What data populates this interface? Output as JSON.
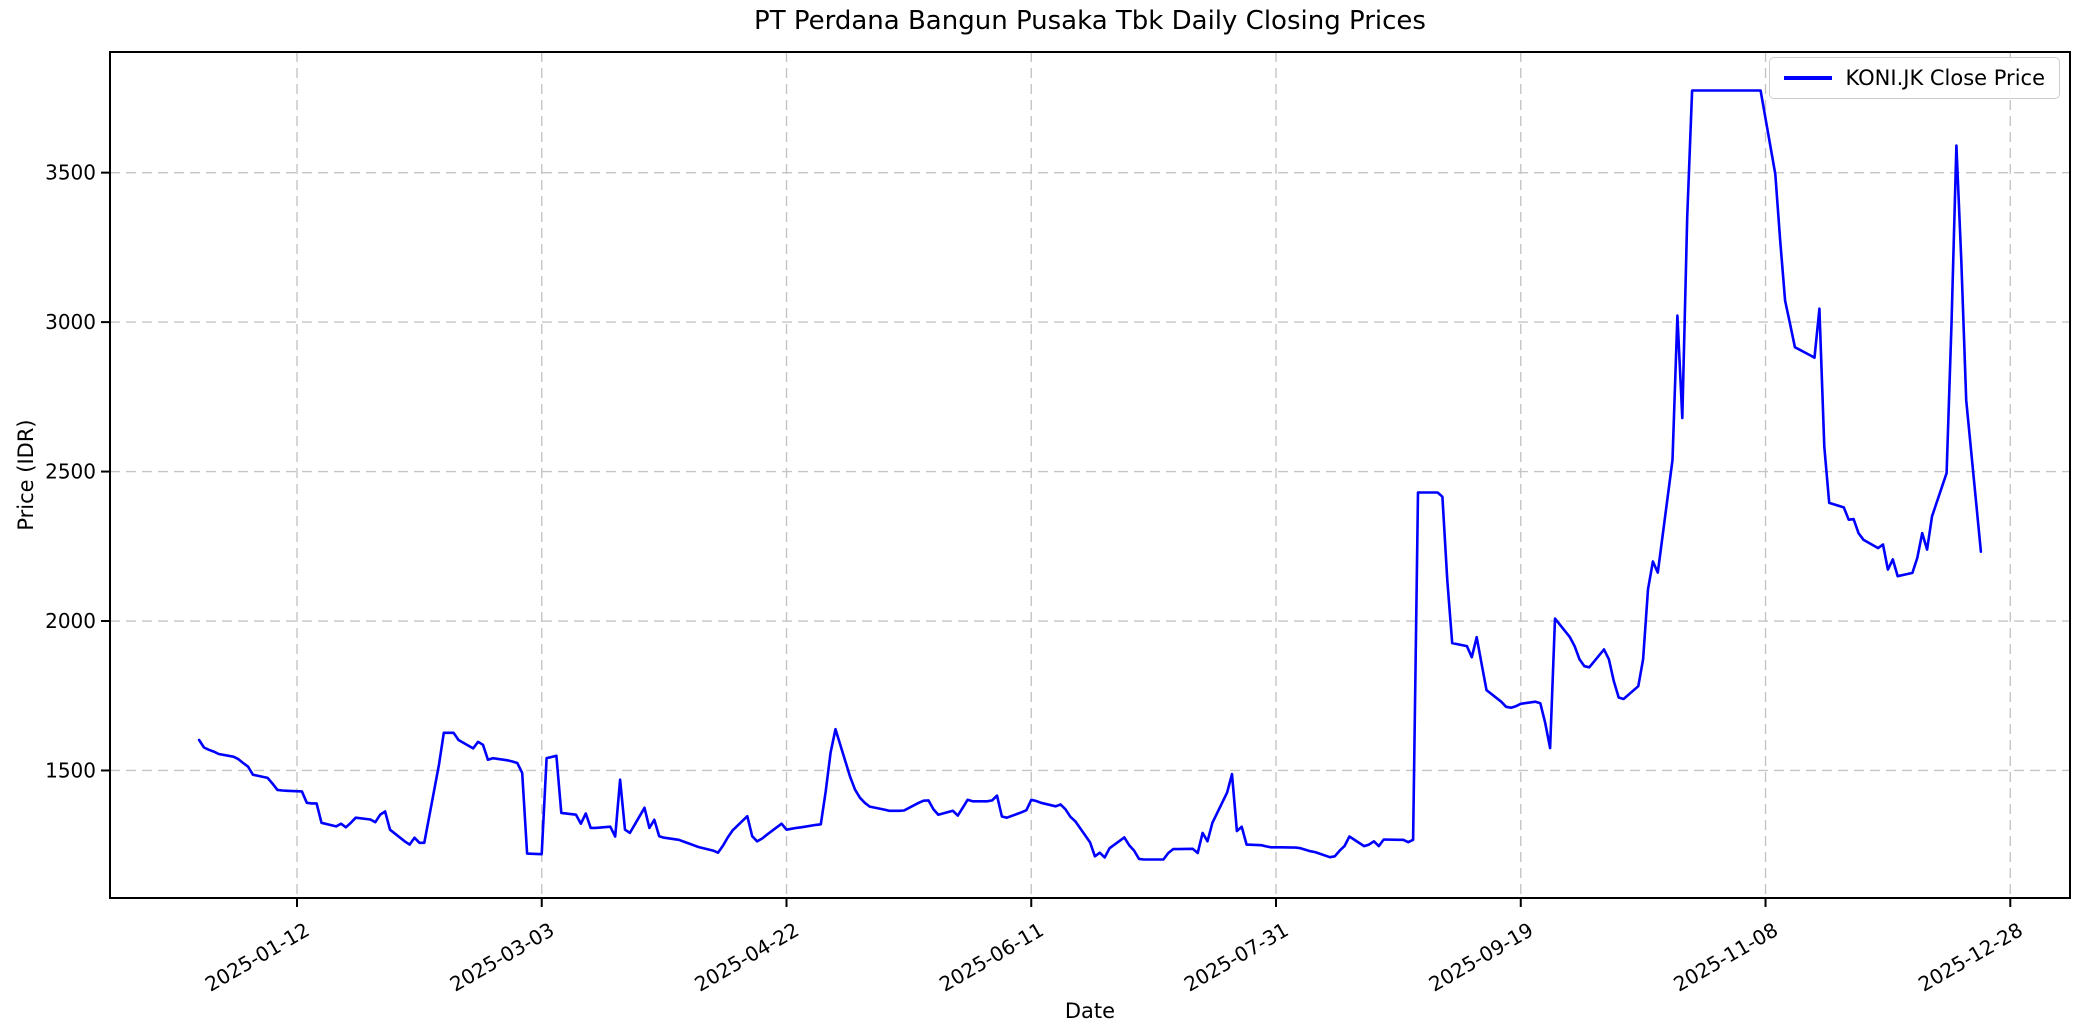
{
  "chart_data": {
    "type": "line",
    "title": "PT Perdana Bangun Pusaka Tbk Daily Closing Prices",
    "xlabel": "Date",
    "ylabel": "Price (IDR)",
    "grid": true,
    "grid_style": "dashed",
    "legend_position": "upper right",
    "background_color": "#ffffff",
    "ylim": [
      1073,
      3904
    ],
    "y_ticks": [
      1500,
      2000,
      2500,
      3000,
      3500
    ],
    "x_ticks": [
      "2025-01-12",
      "2025-03-03",
      "2025-04-22",
      "2025-06-11",
      "2025-07-31",
      "2025-09-19",
      "2025-11-08",
      "2025-12-28"
    ],
    "series": [
      {
        "name": "KONI.JK Close Price",
        "color": "#0000ff",
        "line_width": 2.6,
        "dates": [
          "2024-12-23",
          "2024-12-24",
          "2024-12-25",
          "2024-12-26",
          "2024-12-27",
          "2024-12-30",
          "2024-12-31",
          "2025-01-01",
          "2025-01-02",
          "2025-01-03",
          "2025-01-06",
          "2025-01-07",
          "2025-01-08",
          "2025-01-09",
          "2025-01-10",
          "2025-01-13",
          "2025-01-14",
          "2025-01-15",
          "2025-01-16",
          "2025-01-17",
          "2025-01-20",
          "2025-01-21",
          "2025-01-22",
          "2025-01-23",
          "2025-01-24",
          "2025-01-27",
          "2025-01-28",
          "2025-01-29",
          "2025-01-30",
          "2025-01-31",
          "2025-02-03",
          "2025-02-04",
          "2025-02-05",
          "2025-02-06",
          "2025-02-07",
          "2025-02-10",
          "2025-02-11",
          "2025-02-12",
          "2025-02-13",
          "2025-02-14",
          "2025-02-17",
          "2025-02-18",
          "2025-02-19",
          "2025-02-20",
          "2025-02-21",
          "2025-02-24",
          "2025-02-25",
          "2025-02-26",
          "2025-02-27",
          "2025-02-28",
          "2025-03-03",
          "2025-03-04",
          "2025-03-05",
          "2025-03-06",
          "2025-03-07",
          "2025-03-10",
          "2025-03-11",
          "2025-03-12",
          "2025-03-13",
          "2025-03-14",
          "2025-03-17",
          "2025-03-18",
          "2025-03-19",
          "2025-03-20",
          "2025-03-21",
          "2025-03-24",
          "2025-03-25",
          "2025-03-26",
          "2025-03-27",
          "2025-03-28",
          "2025-03-31",
          "2025-04-01",
          "2025-04-02",
          "2025-04-03",
          "2025-04-04",
          "2025-04-07",
          "2025-04-08",
          "2025-04-09",
          "2025-04-10",
          "2025-04-11",
          "2025-04-14",
          "2025-04-15",
          "2025-04-16",
          "2025-04-17",
          "2025-04-18",
          "2025-04-21",
          "2025-04-22",
          "2025-04-23",
          "2025-04-24",
          "2025-04-25",
          "2025-04-28",
          "2025-04-29",
          "2025-04-30",
          "2025-05-01",
          "2025-05-02",
          "2025-05-05",
          "2025-05-06",
          "2025-05-07",
          "2025-05-08",
          "2025-05-09",
          "2025-05-12",
          "2025-05-13",
          "2025-05-14",
          "2025-05-15",
          "2025-05-16",
          "2025-05-19",
          "2025-05-20",
          "2025-05-21",
          "2025-05-22",
          "2025-05-23",
          "2025-05-26",
          "2025-05-27",
          "2025-05-28",
          "2025-05-29",
          "2025-05-30",
          "2025-06-02",
          "2025-06-03",
          "2025-06-04",
          "2025-06-05",
          "2025-06-06",
          "2025-06-09",
          "2025-06-10",
          "2025-06-11",
          "2025-06-12",
          "2025-06-13",
          "2025-06-16",
          "2025-06-17",
          "2025-06-18",
          "2025-06-19",
          "2025-06-20",
          "2025-06-23",
          "2025-06-24",
          "2025-06-25",
          "2025-06-26",
          "2025-06-27",
          "2025-06-30",
          "2025-07-01",
          "2025-07-02",
          "2025-07-03",
          "2025-07-04",
          "2025-07-07",
          "2025-07-08",
          "2025-07-09",
          "2025-07-10",
          "2025-07-11",
          "2025-07-14",
          "2025-07-15",
          "2025-07-16",
          "2025-07-17",
          "2025-07-18",
          "2025-07-21",
          "2025-07-22",
          "2025-07-23",
          "2025-07-24",
          "2025-07-25",
          "2025-07-28",
          "2025-07-29",
          "2025-07-30",
          "2025-07-31",
          "2025-08-01",
          "2025-08-04",
          "2025-08-05",
          "2025-08-06",
          "2025-08-07",
          "2025-08-08",
          "2025-08-11",
          "2025-08-12",
          "2025-08-13",
          "2025-08-14",
          "2025-08-15",
          "2025-08-18",
          "2025-08-19",
          "2025-08-20",
          "2025-08-21",
          "2025-08-22",
          "2025-08-25",
          "2025-08-26",
          "2025-08-27",
          "2025-08-28",
          "2025-08-29",
          "2025-09-01",
          "2025-09-02",
          "2025-09-03",
          "2025-09-04",
          "2025-09-05",
          "2025-09-08",
          "2025-09-09",
          "2025-09-10",
          "2025-09-11",
          "2025-09-12",
          "2025-09-15",
          "2025-09-16",
          "2025-09-17",
          "2025-09-18",
          "2025-09-19",
          "2025-09-22",
          "2025-09-23",
          "2025-09-24",
          "2025-09-25",
          "2025-09-26",
          "2025-09-29",
          "2025-09-30",
          "2025-10-01",
          "2025-10-02",
          "2025-10-03",
          "2025-10-06",
          "2025-10-07",
          "2025-10-08",
          "2025-10-09",
          "2025-10-10",
          "2025-10-13",
          "2025-10-14",
          "2025-10-15",
          "2025-10-16",
          "2025-10-17",
          "2025-10-20",
          "2025-10-21",
          "2025-10-22",
          "2025-10-23",
          "2025-10-24",
          "2025-10-27",
          "2025-10-28",
          "2025-10-29",
          "2025-10-30",
          "2025-10-31",
          "2025-11-03",
          "2025-11-04",
          "2025-11-05",
          "2025-11-06",
          "2025-11-07",
          "2025-11-10",
          "2025-11-11",
          "2025-11-12",
          "2025-11-13",
          "2025-11-14",
          "2025-11-17",
          "2025-11-18",
          "2025-11-19",
          "2025-11-20",
          "2025-11-21",
          "2025-11-24",
          "2025-11-25",
          "2025-11-26",
          "2025-11-27",
          "2025-11-28",
          "2025-12-01",
          "2025-12-02",
          "2025-12-03",
          "2025-12-04",
          "2025-12-05",
          "2025-12-08",
          "2025-12-09",
          "2025-12-10",
          "2025-12-11",
          "2025-12-12",
          "2025-12-15",
          "2025-12-16",
          "2025-12-17",
          "2025-12-18",
          "2025-12-19",
          "2025-12-22"
        ],
        "values": [
          1602,
          1577,
          1569,
          1563,
          1555,
          1546,
          1538,
          1525,
          1513,
          1486,
          1475,
          1456,
          1435,
          1433,
          1432,
          1430,
          1392,
          1390,
          1390,
          1325,
          1313,
          1322,
          1310,
          1325,
          1342,
          1336,
          1327,
          1352,
          1363,
          1302,
          1263,
          1252,
          1275,
          1258,
          1258,
          1520,
          1626,
          1626,
          1626,
          1602,
          1574,
          1596,
          1586,
          1536,
          1541,
          1534,
          1530,
          1525,
          1492,
          1222,
          1220,
          1541,
          1545,
          1549,
          1358,
          1352,
          1322,
          1356,
          1308,
          1308,
          1312,
          1279,
          1469,
          1302,
          1291,
          1375,
          1308,
          1335,
          1280,
          1275,
          1268,
          1262,
          1256,
          1250,
          1244,
          1232,
          1225,
          1248,
          1276,
          1300,
          1347,
          1280,
          1263,
          1272,
          1285,
          1322,
          1302,
          1305,
          1308,
          1310,
          1318,
          1320,
          1430,
          1560,
          1638,
          1479,
          1436,
          1409,
          1392,
          1379,
          1369,
          1365,
          1365,
          1365,
          1366,
          1392,
          1399,
          1400,
          1370,
          1352,
          1365,
          1349,
          1375,
          1402,
          1397,
          1397,
          1400,
          1416,
          1346,
          1342,
          1360,
          1367,
          1402,
          1398,
          1392,
          1380,
          1386,
          1370,
          1345,
          1330,
          1260,
          1213,
          1225,
          1209,
          1240,
          1276,
          1250,
          1232,
          1204,
          1202,
          1202,
          1202,
          1224,
          1237,
          1237,
          1238,
          1224,
          1291,
          1263,
          1325,
          1426,
          1488,
          1297,
          1312,
          1252,
          1250,
          1246,
          1243,
          1243,
          1243,
          1242,
          1240,
          1235,
          1230,
          1227,
          1210,
          1213,
          1232,
          1247,
          1279,
          1247,
          1252,
          1263,
          1247,
          1269,
          1268,
          1268,
          1260,
          1268,
          2430,
          2430,
          2430,
          2416,
          2136,
          1926,
          1916,
          1879,
          1946,
          1857,
          1769,
          1730,
          1713,
          1710,
          1715,
          1723,
          1730,
          1725,
          1659,
          1575,
          2008,
          1947,
          1916,
          1872,
          1849,
          1845,
          1905,
          1872,
          1799,
          1744,
          1739,
          1782,
          1872,
          2106,
          2199,
          2162,
          2539,
          3022,
          2679,
          3350,
          3775,
          3775,
          3775,
          3775,
          3775,
          3775,
          3775,
          3775,
          3775,
          3775,
          3775,
          3495,
          3272,
          3072,
          2995,
          2916,
          2890,
          2881,
          3045,
          2583,
          2395,
          2380,
          2339,
          2341,
          2294,
          2272,
          2244,
          2256,
          2172,
          2206,
          2150,
          2161,
          2211,
          2294,
          2239,
          2350,
          2495,
          2994,
          3591,
          3206,
          2739,
          2232
        ]
      }
    ],
    "colors": {
      "line": "#0000ff",
      "grid": "#c5c5c5",
      "spine": "#000000",
      "text": "#000000",
      "legend_border": "#cccccc"
    }
  }
}
